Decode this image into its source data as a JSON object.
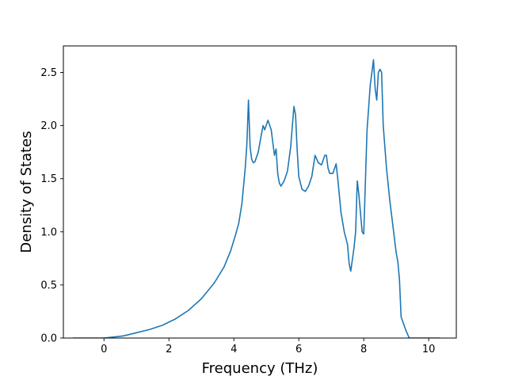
{
  "chart_data": {
    "type": "line",
    "title": "",
    "xlabel": "Frequency (THz)",
    "ylabel": "Density of States",
    "xlim": [
      -1.25,
      10.85
    ],
    "ylim": [
      0,
      2.75
    ],
    "xticks": [
      0,
      2,
      4,
      6,
      8,
      10
    ],
    "yticks": [
      0.0,
      0.5,
      1.0,
      1.5,
      2.0,
      2.5
    ],
    "grid": false,
    "legend": "none",
    "series": [
      {
        "color": "#1f77b4",
        "x": [
          -0.95,
          -0.5,
          0.0,
          0.3,
          0.6,
          1.0,
          1.4,
          1.8,
          2.2,
          2.6,
          3.0,
          3.4,
          3.7,
          3.9,
          4.05,
          4.15,
          4.25,
          4.35,
          4.4,
          4.45,
          4.5,
          4.55,
          4.6,
          4.65,
          4.75,
          4.85,
          4.9,
          4.95,
          5.05,
          5.15,
          5.25,
          5.3,
          5.35,
          5.4,
          5.45,
          5.55,
          5.65,
          5.75,
          5.85,
          5.9,
          5.95,
          6.0,
          6.1,
          6.2,
          6.3,
          6.4,
          6.5,
          6.6,
          6.7,
          6.8,
          6.85,
          6.9,
          6.95,
          7.05,
          7.15,
          7.2,
          7.3,
          7.4,
          7.5,
          7.55,
          7.6,
          7.7,
          7.75,
          7.8,
          7.85,
          7.95,
          8.0,
          8.1,
          8.2,
          8.3,
          8.35,
          8.4,
          8.45,
          8.5,
          8.55,
          8.6,
          8.7,
          8.8,
          8.9,
          9.0,
          9.05,
          9.1,
          9.15,
          9.3,
          9.4,
          9.6,
          10.0,
          10.35
        ],
        "y": [
          0.0,
          0.0,
          0.0,
          0.01,
          0.02,
          0.05,
          0.08,
          0.12,
          0.18,
          0.26,
          0.37,
          0.52,
          0.67,
          0.82,
          0.97,
          1.08,
          1.27,
          1.6,
          1.82,
          2.24,
          1.8,
          1.68,
          1.65,
          1.66,
          1.75,
          1.92,
          2.0,
          1.96,
          2.05,
          1.96,
          1.72,
          1.78,
          1.55,
          1.46,
          1.43,
          1.48,
          1.57,
          1.8,
          2.18,
          2.1,
          1.77,
          1.52,
          1.4,
          1.38,
          1.43,
          1.52,
          1.72,
          1.65,
          1.63,
          1.72,
          1.72,
          1.6,
          1.55,
          1.55,
          1.64,
          1.5,
          1.18,
          1.0,
          0.88,
          0.7,
          0.63,
          0.85,
          1.0,
          1.48,
          1.35,
          1.0,
          0.98,
          1.95,
          2.38,
          2.62,
          2.35,
          2.24,
          2.5,
          2.53,
          2.5,
          2.0,
          1.6,
          1.3,
          1.05,
          0.8,
          0.72,
          0.55,
          0.2,
          0.07,
          0.0,
          0.0,
          0.0,
          0.0
        ]
      }
    ]
  }
}
